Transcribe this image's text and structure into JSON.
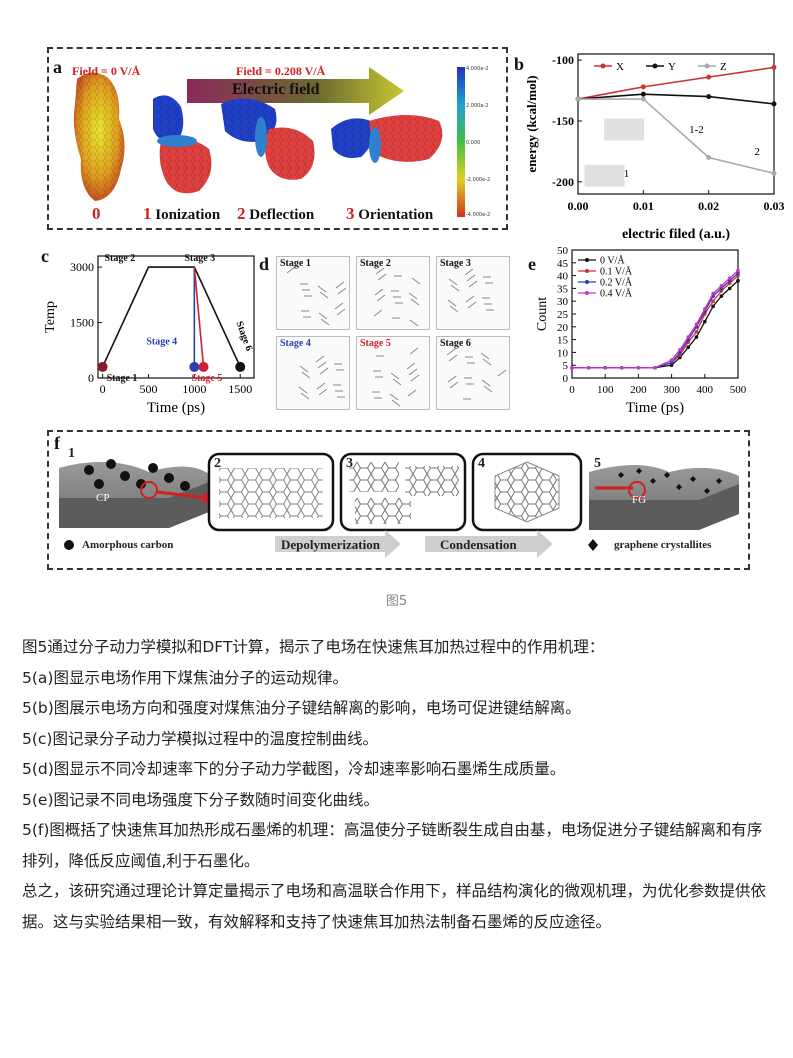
{
  "panel_a": {
    "label": "a",
    "field0": "Field = 0 V/Å",
    "field1": "Field = 0.208 V/Å",
    "arrow_text": "Electric field",
    "colorbar_ticks": [
      "4.000e-2",
      "2.000e-2",
      "0.000",
      "-2.000e-2",
      "-4.000e-2"
    ],
    "steps": [
      {
        "num": "0",
        "text": ""
      },
      {
        "num": "1",
        "text": "Ionization"
      },
      {
        "num": "2",
        "text": "Deflection"
      },
      {
        "num": "3",
        "text": "Orientation"
      }
    ]
  },
  "panel_b": {
    "label": "b",
    "ylabel": "energy (kcal/mol)",
    "xlabel": "electric filed (a.u.)",
    "xticks": [
      "0.00",
      "0.01",
      "0.02",
      "0.03"
    ],
    "yticks": [
      "-100",
      "-150",
      "-200"
    ],
    "legend": [
      "X",
      "Y",
      "Z"
    ],
    "annotations": [
      "1-2",
      "1",
      "2"
    ]
  },
  "panel_c": {
    "label": "c",
    "ylabel": "Temp",
    "xlabel": "Time (ps)",
    "xticks": [
      "0",
      "500",
      "1000",
      "1500"
    ],
    "yticks": [
      "3000",
      "1500",
      "0"
    ],
    "stages": [
      "Stage 1",
      "Stage 2",
      "Stage 3",
      "Stage 4",
      "Stage 5",
      "Stage 6"
    ]
  },
  "panel_d": {
    "label": "d",
    "stages": [
      "Stage 1",
      "Stage 2",
      "Stage 3",
      "Stage 4",
      "Stage 5",
      "Stage 6"
    ]
  },
  "panel_e": {
    "label": "e",
    "ylabel": "Count",
    "xlabel": "Time (ps)",
    "xticks": [
      "0",
      "100",
      "200",
      "300",
      "400",
      "500"
    ],
    "yticks": [
      "0",
      "5",
      "10",
      "15",
      "20",
      "25",
      "30",
      "35",
      "40",
      "45",
      "50"
    ],
    "legend": [
      "0   V/Å",
      "0.1 V/Å",
      "0.2 V/Å",
      "0.4 V/Å"
    ]
  },
  "panel_f": {
    "label": "f",
    "box_numbers": [
      "1",
      "2",
      "3",
      "4",
      "5"
    ],
    "cp": "CP",
    "fg": "FG",
    "legend_amorphous": "Amorphous carbon",
    "step1": "Depolymerization",
    "step2": "Condensation",
    "legend_graphene": "graphene crystallites"
  },
  "caption": "图5",
  "paragraphs": [
    "图5通过分子动力学模拟和DFT计算，揭示了电场在快速焦耳加热过程中的作用机理：",
    "5(a)图显示电场作用下煤焦油分子的运动规律。",
    "5(b)图展示电场方向和强度对煤焦油分子键结解离的影响，电场可促进键结解离。",
    "5(c)图记录分子动力学模拟过程中的温度控制曲线。",
    "5(d)图显示不同冷却速率下的分子动力学截图，冷却速率影响石墨烯生成质量。",
    "5(e)图记录不同电场强度下分子数随时间变化曲线。",
    "5(f)图概括了快速焦耳加热形成石墨烯的机理：高温使分子链断裂生成自由基，电场促进分子键结解离和有序排列，降低反应阈值,利于石墨化。",
    "总之，该研究通过理论计算定量揭示了电场和高温联合作用下，样品结构演化的微观机理，为优化参数提供依据。这与实验结果相一致，有效解释和支持了快速焦耳加热法制备石墨烯的反应途径。"
  ],
  "chart_data": [
    {
      "panel": "b",
      "type": "line",
      "x": [
        0.0,
        0.01,
        0.02,
        0.03
      ],
      "series": [
        {
          "name": "X",
          "values": [
            -132,
            -122,
            -114,
            -106
          ],
          "color": "#cc3333"
        },
        {
          "name": "Y",
          "values": [
            -132,
            -128,
            -130,
            -136
          ],
          "color": "#111111"
        },
        {
          "name": "Z",
          "values": [
            -132,
            -132,
            -180,
            -193
          ],
          "color": "#aaaaaa"
        }
      ],
      "xlabel": "electric filed (a.u.)",
      "ylabel": "energy (kcal/mol)",
      "xlim": [
        0,
        0.03
      ],
      "ylim": [
        -210,
        -95
      ],
      "legend_position": "top"
    },
    {
      "panel": "c",
      "type": "line",
      "x": [
        0,
        500,
        1000,
        1500
      ],
      "series": [
        {
          "name": "main",
          "points": [
            [
              0,
              300
            ],
            [
              500,
              3000
            ],
            [
              1000,
              3000
            ],
            [
              1500,
              300
            ]
          ],
          "color": "#111111"
        },
        {
          "name": "Stage 4",
          "points": [
            [
              1000,
              3000
            ],
            [
              1000,
              300
            ]
          ],
          "color": "#2a3fb0"
        },
        {
          "name": "Stage 5",
          "points": [
            [
              1000,
              3000
            ],
            [
              1100,
              300
            ]
          ],
          "color": "#cc2233"
        }
      ],
      "xlabel": "Time (ps)",
      "ylabel": "Temp",
      "xlim": [
        -50,
        1650
      ],
      "ylim": [
        0,
        3300
      ]
    },
    {
      "panel": "e",
      "type": "line",
      "x": [
        0,
        50,
        100,
        150,
        200,
        250,
        300,
        325,
        350,
        375,
        400,
        425,
        450,
        475,
        500
      ],
      "series": [
        {
          "name": "0   V/Å",
          "values": [
            4,
            4,
            4,
            4,
            4,
            4,
            5,
            8,
            12,
            16,
            22,
            28,
            32,
            35,
            38
          ],
          "color": "#111111"
        },
        {
          "name": "0.1 V/Å",
          "values": [
            4,
            4,
            4,
            4,
            4,
            4,
            6,
            9,
            14,
            18,
            25,
            30,
            34,
            37,
            40
          ],
          "color": "#cc3333"
        },
        {
          "name": "0.2 V/Å",
          "values": [
            4,
            4,
            4,
            4,
            4,
            4,
            6,
            10,
            15,
            20,
            26,
            32,
            35,
            38,
            41
          ],
          "color": "#2a3fb0"
        },
        {
          "name": "0.4 V/Å",
          "values": [
            4,
            4,
            4,
            4,
            4,
            4,
            7,
            11,
            16,
            21,
            27,
            33,
            36,
            39,
            42
          ],
          "color": "#cc33cc"
        }
      ],
      "xlabel": "Time (ps)",
      "ylabel": "Count",
      "xlim": [
        0,
        500
      ],
      "ylim": [
        0,
        50
      ],
      "legend_position": "top-left"
    }
  ]
}
